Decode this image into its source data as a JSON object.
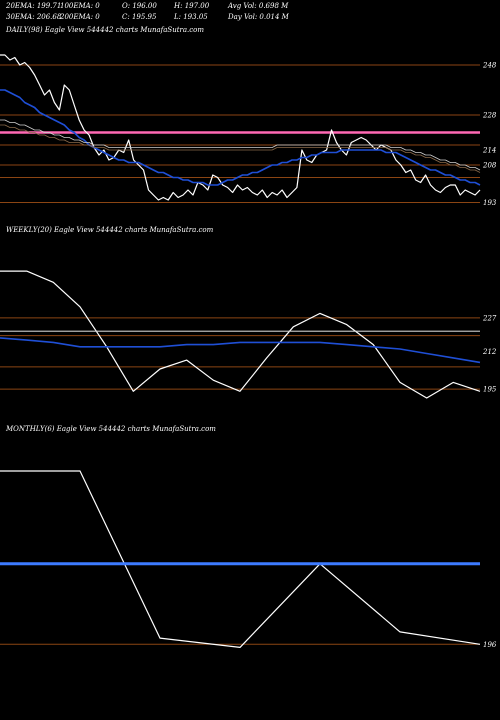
{
  "header": {
    "row1": [
      "20EMA: 199.71",
      "100EMA: 0",
      "O: 196.00",
      "H: 197.00",
      "Avg Vol: 0.698  M"
    ],
    "row2": [
      "30EMA: 206.68",
      "200EMA: 0",
      "C: 195.95",
      "L: 193.05",
      "Day Vol: 0.014  M"
    ]
  },
  "colors": {
    "background": "#000000",
    "price": "#ffffff",
    "ema_blue": "#1f4fd6",
    "level_line": "#8b4513",
    "pink_band": "#ff69b4",
    "ema_slow": "#cfcfcf"
  },
  "chart_data": [
    {
      "type": "line",
      "title": "DAILY(98) Eagle   View  544442  charts MunafaSutra.com",
      "ylim": [
        186,
        258
      ],
      "yticks": [
        {
          "label": "248",
          "value": 248
        },
        {
          "label": "228",
          "value": 228
        },
        {
          "label": "214",
          "value": 214
        },
        {
          "label": "208",
          "value": 208
        },
        {
          "label": "193",
          "value": 193
        }
      ],
      "levels": [
        248,
        228,
        221,
        216,
        208,
        203,
        193
      ],
      "series": [
        {
          "role": "price",
          "values": [
            252,
            252,
            250,
            251,
            248,
            249,
            247,
            244,
            240,
            236,
            238,
            233,
            230,
            240,
            238,
            232,
            226,
            222,
            220,
            215,
            212,
            214,
            210,
            211,
            214,
            213,
            218,
            210,
            208,
            206,
            198,
            196,
            194,
            195,
            194,
            197,
            195,
            196,
            198,
            196,
            201,
            200,
            198,
            204,
            203,
            200,
            199,
            197,
            200,
            198,
            199,
            197,
            196,
            198,
            195,
            197,
            196,
            198,
            195,
            197,
            199,
            214,
            210,
            209,
            212,
            213,
            214,
            222,
            217,
            214,
            212,
            217,
            218,
            219,
            218,
            216,
            214,
            216,
            215,
            214,
            210,
            208,
            205,
            206,
            202,
            201,
            204,
            200,
            198,
            197,
            199,
            200,
            200,
            196,
            198,
            197,
            196,
            198
          ]
        },
        {
          "role": "ema",
          "values": [
            238,
            238,
            237,
            236,
            235,
            233,
            232,
            231,
            229,
            228,
            227,
            226,
            225,
            224,
            222,
            221,
            219,
            218,
            216,
            215,
            214,
            213,
            212,
            211,
            210,
            210,
            209,
            209,
            209,
            208,
            207,
            206,
            205,
            205,
            204,
            203,
            203,
            202,
            202,
            201,
            201,
            201,
            200,
            200,
            200,
            201,
            202,
            202,
            203,
            204,
            204,
            205,
            205,
            206,
            207,
            208,
            208,
            209,
            209,
            210,
            210,
            211,
            211,
            212,
            212,
            213,
            213,
            213,
            213,
            214,
            214,
            214,
            214,
            214,
            214,
            214,
            214,
            214,
            213,
            213,
            213,
            212,
            211,
            210,
            209,
            208,
            207,
            206,
            206,
            205,
            204,
            204,
            203,
            202,
            202,
            201,
            201,
            200
          ]
        },
        {
          "role": "ema_slow_1",
          "values": [
            226,
            226,
            225,
            225,
            224,
            224,
            223,
            222,
            222,
            221,
            221,
            220,
            220,
            219,
            219,
            218,
            218,
            217,
            217,
            216,
            216,
            216,
            215,
            215,
            215,
            215,
            215,
            215,
            215,
            215,
            215,
            215,
            215,
            215,
            215,
            215,
            215,
            215,
            215,
            215,
            215,
            215,
            215,
            215,
            215,
            215,
            215,
            215,
            215,
            215,
            215,
            215,
            215,
            215,
            215,
            215,
            216,
            216,
            216,
            216,
            216,
            216,
            216,
            216,
            216,
            216,
            216,
            216,
            216,
            216,
            216,
            216,
            216,
            216,
            216,
            216,
            216,
            216,
            216,
            215,
            215,
            215,
            214,
            214,
            213,
            213,
            212,
            212,
            211,
            210,
            210,
            209,
            209,
            208,
            208,
            207,
            207,
            206
          ]
        },
        {
          "role": "ema_slow_2",
          "values": [
            224,
            224,
            223,
            223,
            222,
            222,
            221,
            221,
            220,
            220,
            219,
            219,
            218,
            218,
            217,
            217,
            217,
            216,
            216,
            215,
            215,
            215,
            214,
            214,
            214,
            214,
            214,
            214,
            214,
            214,
            214,
            214,
            214,
            214,
            214,
            214,
            214,
            214,
            214,
            214,
            214,
            214,
            214,
            214,
            214,
            214,
            214,
            214,
            214,
            214,
            214,
            214,
            214,
            214,
            214,
            214,
            215,
            215,
            215,
            215,
            215,
            215,
            215,
            215,
            215,
            215,
            215,
            215,
            215,
            215,
            215,
            215,
            215,
            215,
            215,
            215,
            215,
            215,
            215,
            214,
            214,
            214,
            213,
            213,
            212,
            212,
            211,
            211,
            210,
            209,
            209,
            208,
            208,
            207,
            207,
            206,
            206,
            205
          ]
        }
      ]
    },
    {
      "type": "line",
      "title": "WEEKLY(20) Eagle   View  544442  charts MunafaSutra.com",
      "ylim": [
        182,
        262
      ],
      "yticks": [
        {
          "label": "227",
          "value": 227
        },
        {
          "label": "212",
          "value": 212
        },
        {
          "label": "195",
          "value": 195
        }
      ],
      "levels": [
        227,
        219,
        205,
        195
      ],
      "series": [
        {
          "role": "price",
          "values": [
            248,
            248,
            243,
            232,
            214,
            194,
            204,
            208,
            199,
            194,
            209,
            223,
            229,
            224,
            215,
            198,
            191,
            198,
            194
          ]
        },
        {
          "role": "ema",
          "values": [
            218,
            217,
            216,
            214,
            214,
            214,
            214,
            215,
            215,
            216,
            216,
            216,
            216,
            215,
            214,
            213,
            211,
            209,
            207
          ]
        },
        {
          "role": "ema_slow",
          "values": [
            221,
            221,
            221,
            221,
            221,
            221,
            221,
            221,
            221,
            221,
            221,
            221,
            221,
            221,
            221,
            221,
            221,
            221,
            221
          ]
        }
      ]
    },
    {
      "type": "line",
      "title": "MONTHLY(6) Eagle   View  544442  charts MunafaSutra.com",
      "ylim": [
        178,
        262
      ],
      "yticks": [
        {
          "label": "196",
          "value": 196
        }
      ],
      "levels": [
        222,
        196
      ],
      "series": [
        {
          "role": "price",
          "values": [
            252,
            252,
            198,
            195,
            222,
            200,
            196
          ]
        },
        {
          "role": "ema",
          "values": [
            222,
            222,
            222,
            222,
            222,
            222,
            222
          ]
        }
      ]
    }
  ]
}
